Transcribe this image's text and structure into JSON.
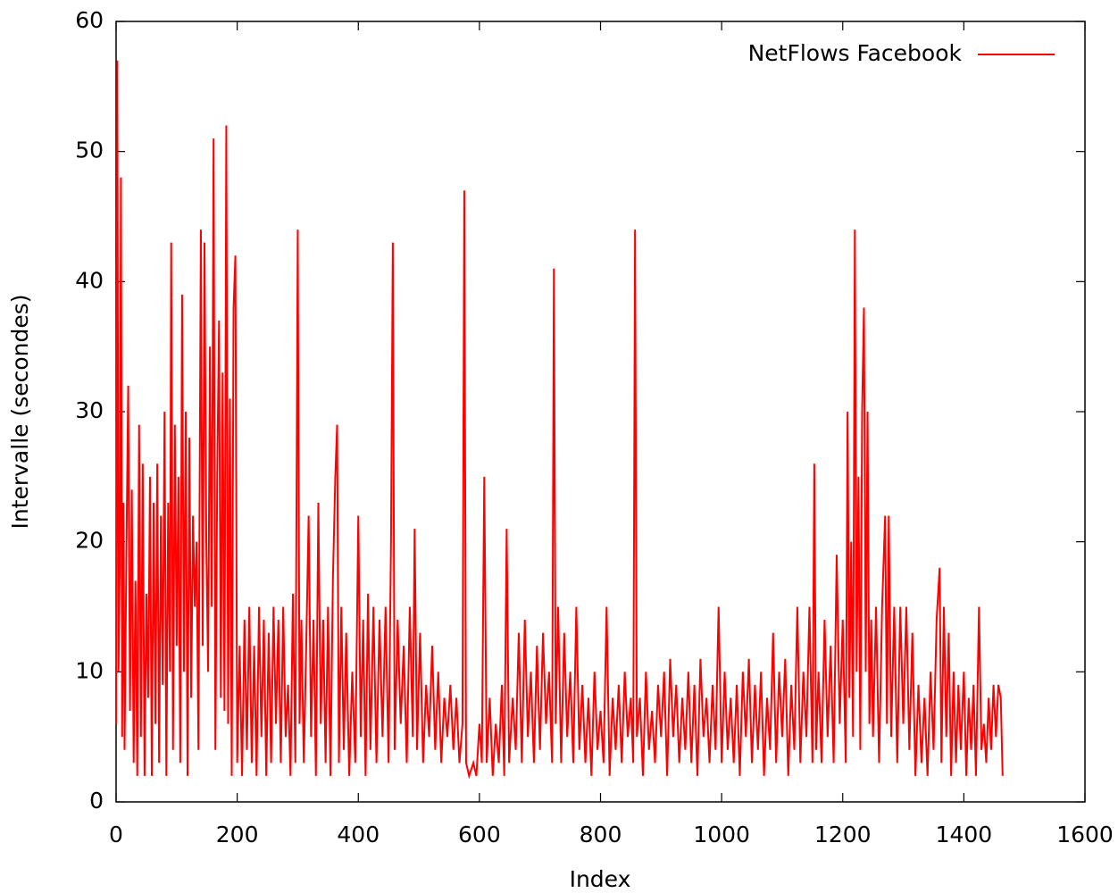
{
  "chart_data": {
    "type": "line",
    "x_label": "Index",
    "y_label": "Intervalle (secondes)",
    "xlim": [
      0,
      1600
    ],
    "ylim": [
      0,
      60
    ],
    "xticks": [
      0,
      200,
      400,
      600,
      800,
      1000,
      1200,
      1400,
      1600
    ],
    "yticks": [
      0,
      10,
      20,
      30,
      40,
      50,
      60
    ],
    "legend": "top-right",
    "x": [
      0,
      2,
      4,
      6,
      8,
      10,
      12,
      14,
      17,
      20,
      23,
      26,
      29,
      32,
      35,
      38,
      41,
      44,
      47,
      50,
      53,
      56,
      59,
      62,
      65,
      68,
      71,
      74,
      77,
      80,
      83,
      86,
      89,
      91,
      94,
      97,
      100,
      103,
      106,
      109,
      112,
      115,
      118,
      121,
      124,
      127,
      130,
      133,
      136,
      140,
      143,
      146,
      149,
      152,
      155,
      158,
      161,
      164,
      167,
      170,
      173,
      176,
      179,
      182,
      185,
      188,
      191,
      194,
      197,
      200,
      204,
      208,
      212,
      216,
      220,
      224,
      228,
      232,
      236,
      240,
      244,
      248,
      252,
      256,
      260,
      264,
      268,
      272,
      276,
      280,
      284,
      288,
      292,
      296,
      300,
      303,
      306,
      310,
      314,
      318,
      322,
      326,
      330,
      334,
      338,
      342,
      346,
      350,
      354,
      358,
      362,
      365,
      368,
      372,
      376,
      380,
      385,
      390,
      395,
      400,
      404,
      408,
      412,
      416,
      420,
      425,
      430,
      435,
      440,
      445,
      450,
      454,
      457,
      460,
      465,
      470,
      475,
      480,
      485,
      490,
      493,
      497,
      502,
      507,
      512,
      517,
      522,
      527,
      532,
      537,
      542,
      547,
      552,
      557,
      562,
      567,
      572,
      575,
      578,
      583,
      590,
      595,
      600,
      604,
      608,
      612,
      617,
      622,
      627,
      632,
      637,
      641,
      645,
      649,
      655,
      660,
      665,
      670,
      675,
      680,
      685,
      690,
      695,
      700,
      705,
      710,
      715,
      720,
      723,
      726,
      730,
      735,
      740,
      745,
      750,
      755,
      760,
      765,
      770,
      775,
      780,
      785,
      790,
      795,
      800,
      805,
      810,
      815,
      820,
      825,
      830,
      835,
      840,
      845,
      850,
      854,
      857,
      860,
      865,
      870,
      875,
      880,
      885,
      890,
      895,
      900,
      905,
      910,
      915,
      920,
      925,
      930,
      935,
      940,
      945,
      950,
      955,
      960,
      965,
      970,
      975,
      980,
      985,
      990,
      995,
      1000,
      1005,
      1010,
      1015,
      1020,
      1025,
      1030,
      1035,
      1040,
      1045,
      1050,
      1055,
      1060,
      1065,
      1070,
      1075,
      1080,
      1085,
      1090,
      1095,
      1100,
      1105,
      1110,
      1115,
      1120,
      1125,
      1130,
      1135,
      1140,
      1145,
      1150,
      1153,
      1156,
      1160,
      1165,
      1170,
      1175,
      1180,
      1185,
      1190,
      1195,
      1200,
      1205,
      1208,
      1211,
      1214,
      1217,
      1220,
      1223,
      1226,
      1229,
      1232,
      1235,
      1238,
      1241,
      1244,
      1247,
      1250,
      1255,
      1260,
      1265,
      1270,
      1273,
      1276,
      1280,
      1285,
      1290,
      1295,
      1300,
      1305,
      1310,
      1315,
      1320,
      1325,
      1330,
      1335,
      1340,
      1345,
      1350,
      1355,
      1360,
      1363,
      1367,
      1371,
      1375,
      1379,
      1383,
      1387,
      1391,
      1395,
      1400,
      1404,
      1408,
      1412,
      1416,
      1420,
      1425,
      1429,
      1433,
      1437,
      1441,
      1445,
      1449,
      1453,
      1457,
      1461,
      1464
    ],
    "series": [
      {
        "name": "NetFlows Facebook",
        "color": "#ff0000",
        "values": [
          6,
          57,
          10,
          18,
          48,
          5,
          23,
          4,
          19,
          32,
          7,
          24,
          3,
          17,
          2,
          29,
          5,
          26,
          2,
          16,
          8,
          25,
          2,
          23,
          6,
          26,
          3,
          22,
          9,
          30,
          2,
          23,
          10,
          43,
          4,
          29,
          12,
          25,
          3,
          39,
          10,
          30,
          2,
          28,
          8,
          22,
          15,
          20,
          4,
          44,
          12,
          43,
          20,
          10,
          35,
          15,
          51,
          4,
          25,
          37,
          8,
          33,
          7,
          52,
          6,
          31,
          2,
          38,
          42,
          3,
          12,
          2,
          14,
          4,
          15,
          3,
          12,
          2,
          15,
          5,
          14,
          2,
          13,
          3,
          15,
          6,
          14,
          3,
          15,
          5,
          9,
          2,
          16,
          3,
          44,
          6,
          14,
          3,
          12,
          22,
          5,
          14,
          2,
          23,
          6,
          14,
          3,
          15,
          2,
          17,
          25,
          29,
          3,
          15,
          4,
          13,
          2,
          10,
          3,
          22,
          5,
          14,
          2,
          16,
          4,
          15,
          3,
          14,
          5,
          15,
          3,
          20,
          43,
          4,
          14,
          6,
          12,
          3,
          15,
          5,
          21,
          4,
          13,
          3,
          9,
          5,
          12,
          4,
          10,
          3,
          8,
          5,
          9,
          4,
          8,
          3,
          6,
          47,
          3,
          2,
          3,
          2,
          6,
          3,
          25,
          3,
          8,
          2,
          6,
          3,
          9,
          2,
          21,
          3,
          8,
          4,
          13,
          3,
          14,
          5,
          10,
          3,
          12,
          4,
          13,
          6,
          10,
          3,
          41,
          6,
          15,
          3,
          13,
          5,
          10,
          3,
          15,
          4,
          9,
          3,
          8,
          2,
          10,
          4,
          7,
          3,
          15,
          2,
          8,
          4,
          9,
          3,
          10,
          5,
          8,
          3,
          44,
          5,
          8,
          2,
          10,
          4,
          7,
          3,
          9,
          5,
          10,
          2,
          11,
          5,
          9,
          3,
          8,
          4,
          10,
          3,
          9,
          2,
          11,
          5,
          8,
          3,
          9,
          4,
          15,
          3,
          10,
          4,
          8,
          3,
          9,
          2,
          10,
          5,
          11,
          3,
          9,
          4,
          10,
          2,
          8,
          4,
          13,
          3,
          10,
          5,
          11,
          2,
          9,
          4,
          15,
          3,
          10,
          5,
          15,
          3,
          26,
          4,
          10,
          3,
          14,
          5,
          12,
          3,
          19,
          6,
          14,
          3,
          30,
          8,
          20,
          5,
          44,
          10,
          25,
          4,
          30,
          38,
          10,
          30,
          6,
          14,
          5,
          15,
          3,
          15,
          22,
          6,
          22,
          5,
          15,
          3,
          15,
          6,
          15,
          4,
          13,
          2,
          9,
          3,
          8,
          2,
          10,
          4,
          14,
          18,
          3,
          15,
          5,
          13,
          2,
          10,
          3,
          9,
          4,
          10,
          2,
          8,
          4,
          9,
          2,
          15,
          4,
          6,
          3,
          8,
          4,
          9,
          5,
          9,
          8,
          2
        ]
      }
    ]
  }
}
